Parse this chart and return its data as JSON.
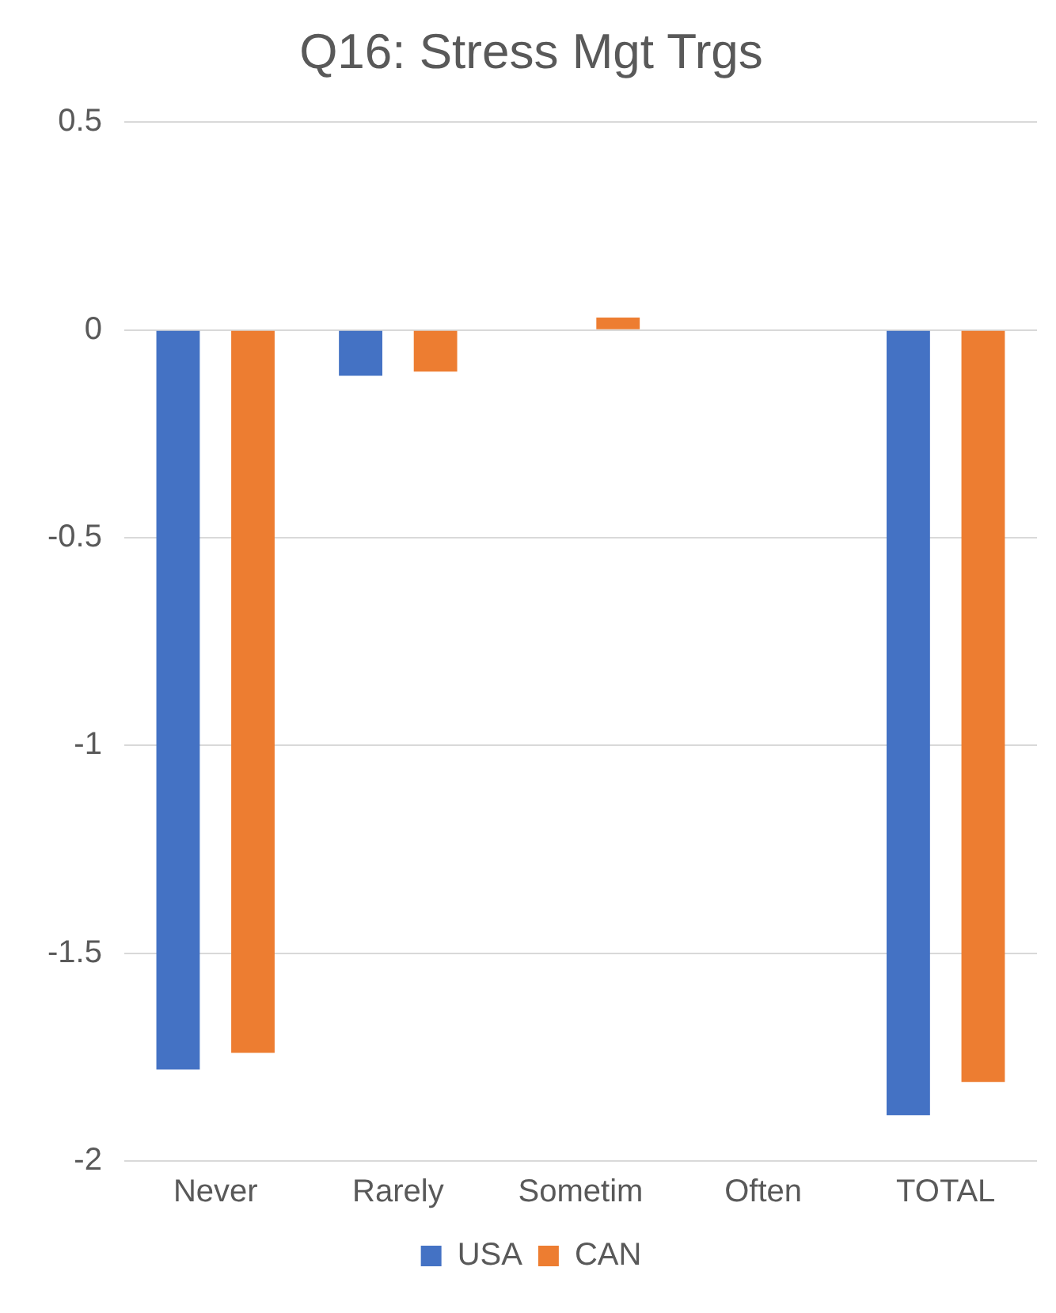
{
  "chart_data": {
    "type": "bar",
    "title": "Q16: Stress Mgt Trgs",
    "categories": [
      "Never",
      "Rarely",
      "Sometim",
      "Often",
      "TOTAL"
    ],
    "series": [
      {
        "name": "USA",
        "color": "#4472c4",
        "values": [
          -1.78,
          -0.11,
          0,
          0,
          -1.89
        ]
      },
      {
        "name": "CAN",
        "color": "#ed7d31",
        "values": [
          -1.74,
          -0.1,
          0.03,
          0,
          -1.81
        ]
      }
    ],
    "ylim": [
      -2,
      0.5
    ],
    "yticks": [
      -2,
      -1.5,
      -1,
      -0.5,
      0,
      0.5
    ],
    "grid": "y",
    "legend": "bottom"
  }
}
